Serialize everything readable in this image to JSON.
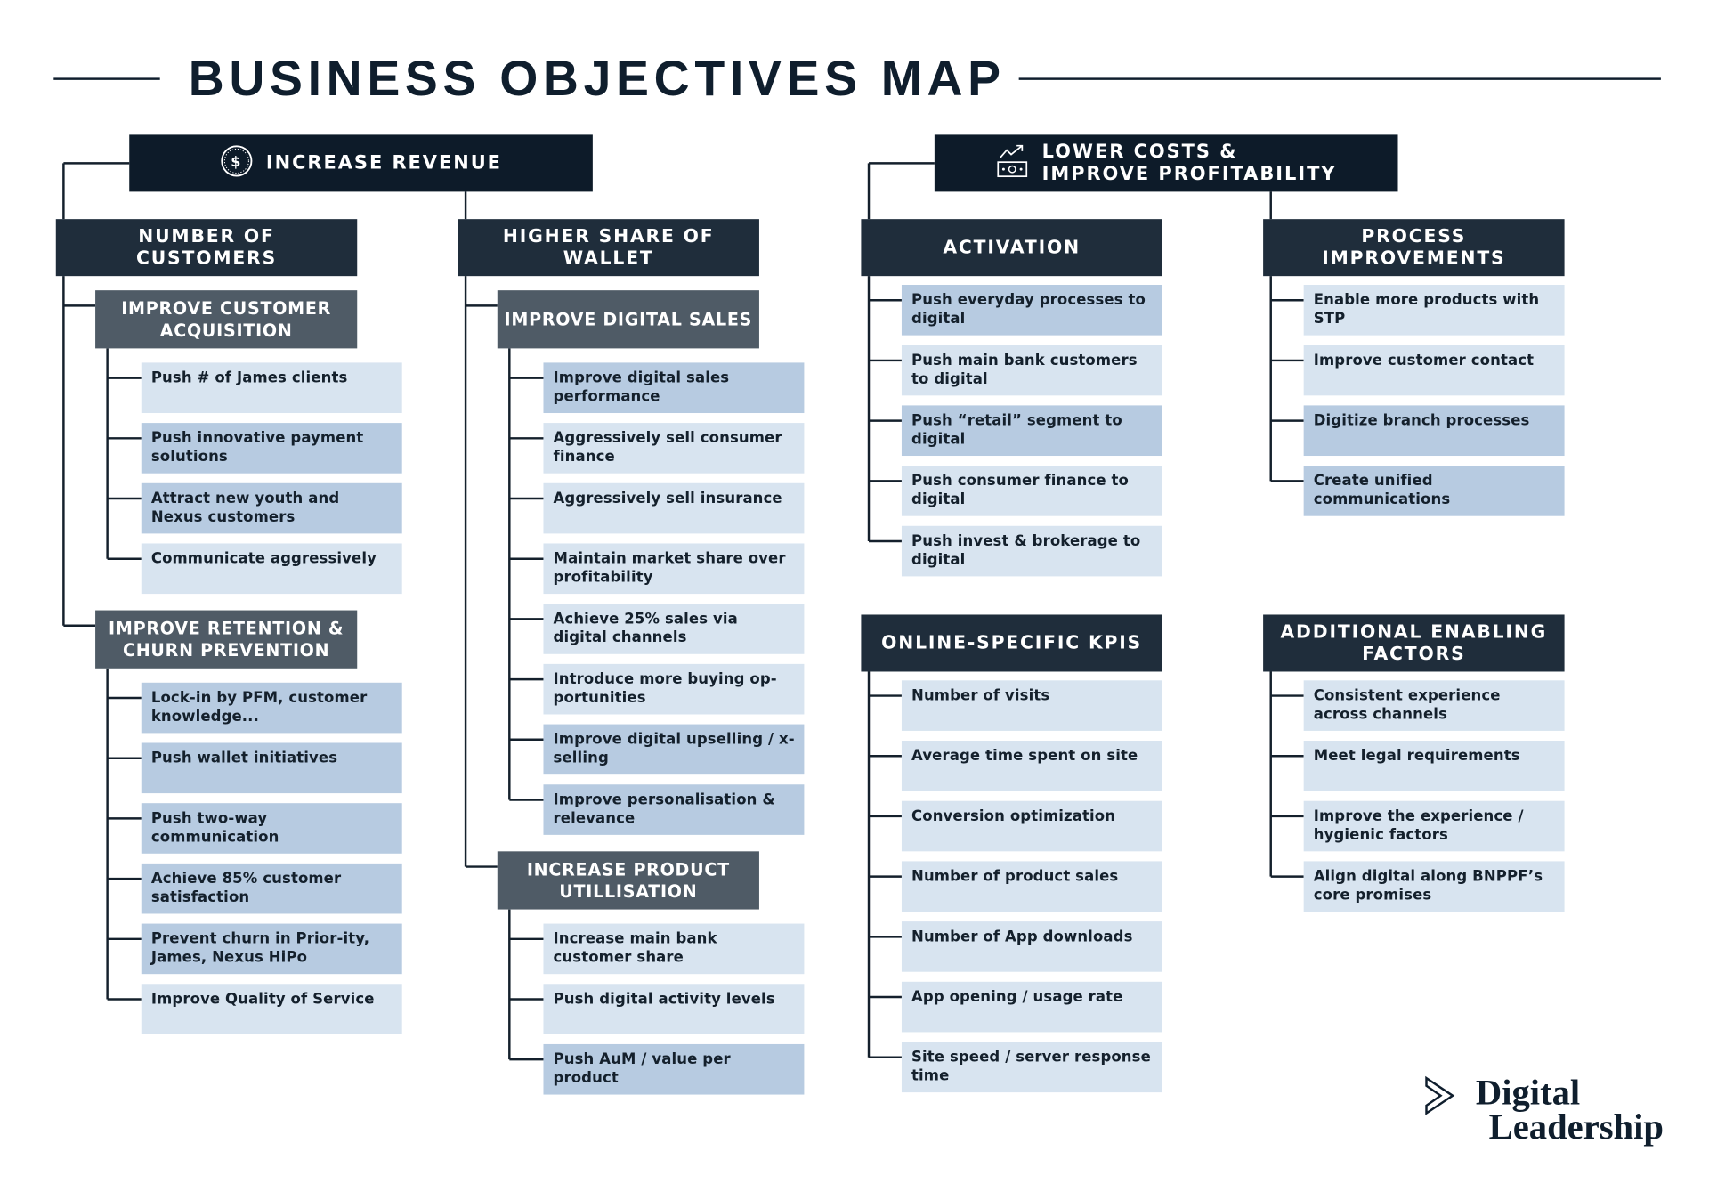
{
  "title": "BUSINESS OBJECTIVES MAP",
  "colors": {
    "root": "#0d1b29",
    "category": "#1f2d3b",
    "subcategory": "#4f5b66",
    "item_light": "#d8e4f0",
    "item_dark": "#b7cbe1",
    "line": "#14202c"
  },
  "objectives": [
    {
      "title": "INCREASE REVENUE",
      "icon": "dollar-coin-icon",
      "categories": [
        {
          "title": "NUMBER OF CUSTOMERS",
          "subgroups": [
            {
              "title": "IMPROVE CUSTOMER ACQUISITION",
              "items": [
                {
                  "text": "Push # of James clients",
                  "shade": "light"
                },
                {
                  "text": "Push innovative payment solutions",
                  "shade": "dark"
                },
                {
                  "text": "Attract new youth and Nexus customers",
                  "shade": "dark"
                },
                {
                  "text": "Communicate aggressively",
                  "shade": "light"
                }
              ]
            },
            {
              "title": "IMPROVE RETENTION & CHURN PREVENTION",
              "items": [
                {
                  "text": "Lock-in by PFM, customer knowledge...",
                  "shade": "dark"
                },
                {
                  "text": "Push wallet initiatives",
                  "shade": "dark"
                },
                {
                  "text": "Push two-way communication",
                  "shade": "dark"
                },
                {
                  "text": "Achieve 85% customer satisfaction",
                  "shade": "dark"
                },
                {
                  "text": "Prevent churn in Prior-ity, James, Nexus HiPo",
                  "shade": "dark"
                },
                {
                  "text": "Improve Quality of Service",
                  "shade": "light"
                }
              ]
            }
          ]
        },
        {
          "title": "HIGHER SHARE OF WALLET",
          "subgroups": [
            {
              "title": "IMPROVE DIGITAL SALES",
              "items": [
                {
                  "text": "Improve digital sales performance",
                  "shade": "dark"
                },
                {
                  "text": "Aggressively sell consumer finance",
                  "shade": "light"
                },
                {
                  "text": "Aggressively sell insurance",
                  "shade": "light"
                },
                {
                  "text": "Maintain market share over profitability",
                  "shade": "light"
                },
                {
                  "text": "Achieve 25% sales via digital channels",
                  "shade": "light"
                },
                {
                  "text": "Introduce more buying op-portunities",
                  "shade": "light"
                },
                {
                  "text": "Improve digital upselling / x-selling",
                  "shade": "dark"
                },
                {
                  "text": "Improve personalisation & relevance",
                  "shade": "dark"
                }
              ]
            },
            {
              "title": "INCREASE PRODUCT UTILLISATION",
              "items": [
                {
                  "text": "Increase main bank customer share",
                  "shade": "light"
                },
                {
                  "text": "Push digital activity levels",
                  "shade": "light"
                },
                {
                  "text": "Push AuM / value per product",
                  "shade": "dark"
                }
              ]
            }
          ]
        }
      ]
    },
    {
      "title": "LOWER COSTS & IMPROVE PROFITABILITY",
      "title_lines": [
        "LOWER COSTS &",
        "IMPROVE PROFITABILITY"
      ],
      "icon": "trend-money-icon",
      "categories": [
        {
          "title": "ACTIVATION",
          "items": [
            {
              "text": "Push everyday processes to digital",
              "shade": "dark"
            },
            {
              "text": "Push main bank customers to digital",
              "shade": "light"
            },
            {
              "text": "Push “retail” segment to digital",
              "shade": "dark"
            },
            {
              "text": "Push consumer finance to digital",
              "shade": "light"
            },
            {
              "text": "Push invest & brokerage to digital",
              "shade": "light"
            }
          ]
        },
        {
          "title": "PROCESS IMPROVEMENTS",
          "items": [
            {
              "text": "Enable more products with STP",
              "shade": "light"
            },
            {
              "text": "Improve customer contact",
              "shade": "light"
            },
            {
              "text": "Digitize branch processes",
              "shade": "dark"
            },
            {
              "text": "Create unified communications",
              "shade": "dark"
            }
          ]
        },
        {
          "title": "ONLINE-SPECIFIC KPIS",
          "items": [
            {
              "text": "Number of visits",
              "shade": "light"
            },
            {
              "text": "Average time spent on site",
              "shade": "light"
            },
            {
              "text": "Conversion optimization",
              "shade": "light"
            },
            {
              "text": "Number of product sales",
              "shade": "light"
            },
            {
              "text": "Number of App downloads",
              "shade": "light"
            },
            {
              "text": "App opening / usage rate",
              "shade": "light"
            },
            {
              "text": "Site speed / server response time",
              "shade": "light"
            }
          ]
        },
        {
          "title": "ADDITIONAL ENABLING FACTORS",
          "items": [
            {
              "text": "Consistent experience across channels",
              "shade": "light"
            },
            {
              "text": "Meet legal requirements",
              "shade": "light"
            },
            {
              "text": "Improve the experience / hygienic factors",
              "shade": "light"
            },
            {
              "text": "Align digital along BNPPF’s core promises",
              "shade": "light"
            }
          ]
        }
      ]
    }
  ],
  "logo": {
    "line1": "Digital",
    "line2": "Leadership",
    "icon": "chevron-right-outline-icon"
  }
}
